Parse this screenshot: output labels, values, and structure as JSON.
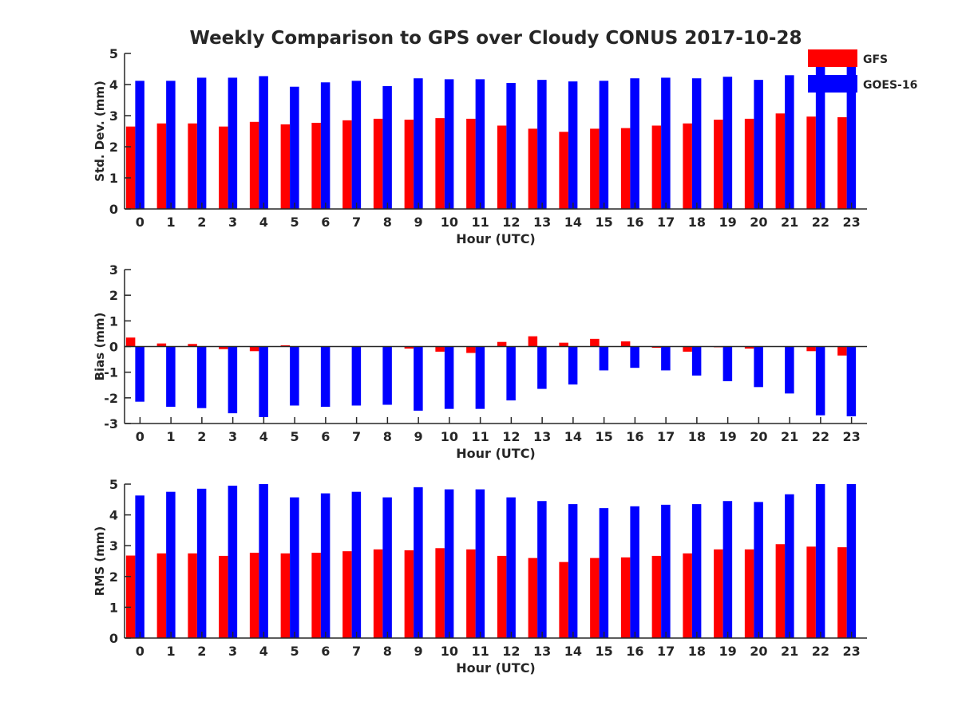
{
  "title": "Weekly Comparison to GPS over Cloudy CONUS 2017-10-28",
  "legend": {
    "placement": "top-right",
    "entries": [
      {
        "name": "GFS",
        "color": "#ff0000"
      },
      {
        "name": "GOES-16",
        "color": "#0000ff"
      }
    ]
  },
  "chart_data": [
    {
      "type": "bar",
      "xlabel": "Hour (UTC)",
      "ylabel": "Std. Dev. (mm)",
      "ylim": [
        0,
        5
      ],
      "yticks": [
        0,
        1,
        2,
        3,
        4,
        5
      ],
      "categories": [
        "0",
        "1",
        "2",
        "3",
        "4",
        "5",
        "6",
        "7",
        "8",
        "9",
        "10",
        "11",
        "12",
        "13",
        "14",
        "15",
        "16",
        "17",
        "18",
        "19",
        "20",
        "21",
        "22",
        "23"
      ],
      "series": [
        {
          "name": "GFS",
          "color": "#ff0000",
          "values": [
            2.65,
            2.75,
            2.75,
            2.65,
            2.8,
            2.72,
            2.77,
            2.85,
            2.9,
            2.87,
            2.92,
            2.9,
            2.68,
            2.58,
            2.48,
            2.58,
            2.6,
            2.68,
            2.75,
            2.87,
            2.9,
            3.07,
            2.97,
            2.95
          ]
        },
        {
          "name": "GOES-16",
          "color": "#0000ff",
          "values": [
            4.12,
            4.12,
            4.22,
            4.22,
            4.27,
            3.93,
            4.07,
            4.12,
            3.95,
            4.2,
            4.17,
            4.17,
            4.05,
            4.15,
            4.1,
            4.12,
            4.2,
            4.22,
            4.2,
            4.25,
            4.15,
            4.3,
            4.57,
            4.65
          ]
        }
      ]
    },
    {
      "type": "bar",
      "xlabel": "Hour (UTC)",
      "ylabel": "Bias (mm)",
      "ylim": [
        -3,
        3
      ],
      "yticks": [
        -3,
        -2,
        -1,
        0,
        1,
        2,
        3
      ],
      "categories": [
        "0",
        "1",
        "2",
        "3",
        "4",
        "5",
        "6",
        "7",
        "8",
        "9",
        "10",
        "11",
        "12",
        "13",
        "14",
        "15",
        "16",
        "17",
        "18",
        "19",
        "20",
        "21",
        "22",
        "23"
      ],
      "series": [
        {
          "name": "GFS",
          "color": "#ff0000",
          "values": [
            0.35,
            0.12,
            0.1,
            -0.1,
            -0.18,
            0.05,
            0.0,
            0.0,
            0.0,
            -0.08,
            -0.2,
            -0.25,
            0.18,
            0.4,
            0.15,
            0.3,
            0.2,
            -0.05,
            -0.2,
            -0.03,
            -0.08,
            0.0,
            -0.18,
            -0.35
          ]
        },
        {
          "name": "GOES-16",
          "color": "#0000ff",
          "values": [
            -2.15,
            -2.35,
            -2.4,
            -2.6,
            -2.75,
            -2.3,
            -2.35,
            -2.3,
            -2.27,
            -2.5,
            -2.43,
            -2.43,
            -2.1,
            -1.65,
            -1.48,
            -0.93,
            -0.83,
            -0.93,
            -1.13,
            -1.35,
            -1.58,
            -1.83,
            -2.68,
            -2.72
          ]
        }
      ]
    },
    {
      "type": "bar",
      "xlabel": "Hour (UTC)",
      "ylabel": "RMS (mm)",
      "ylim": [
        0,
        5
      ],
      "yticks": [
        0,
        1,
        2,
        3,
        4,
        5
      ],
      "categories": [
        "0",
        "1",
        "2",
        "3",
        "4",
        "5",
        "6",
        "7",
        "8",
        "9",
        "10",
        "11",
        "12",
        "13",
        "14",
        "15",
        "16",
        "17",
        "18",
        "19",
        "20",
        "21",
        "22",
        "23"
      ],
      "series": [
        {
          "name": "GFS",
          "color": "#ff0000",
          "values": [
            2.68,
            2.75,
            2.75,
            2.67,
            2.77,
            2.75,
            2.77,
            2.82,
            2.88,
            2.85,
            2.92,
            2.88,
            2.67,
            2.6,
            2.47,
            2.6,
            2.62,
            2.67,
            2.75,
            2.88,
            2.88,
            3.05,
            2.97,
            2.95
          ]
        },
        {
          "name": "GOES-16",
          "color": "#0000ff",
          "values": [
            4.63,
            4.75,
            4.85,
            4.95,
            5.0,
            4.57,
            4.7,
            4.75,
            4.57,
            4.9,
            4.83,
            4.83,
            4.57,
            4.45,
            4.35,
            4.22,
            4.28,
            4.33,
            4.35,
            4.45,
            4.42,
            4.67,
            5.0,
            5.0
          ]
        }
      ]
    }
  ]
}
